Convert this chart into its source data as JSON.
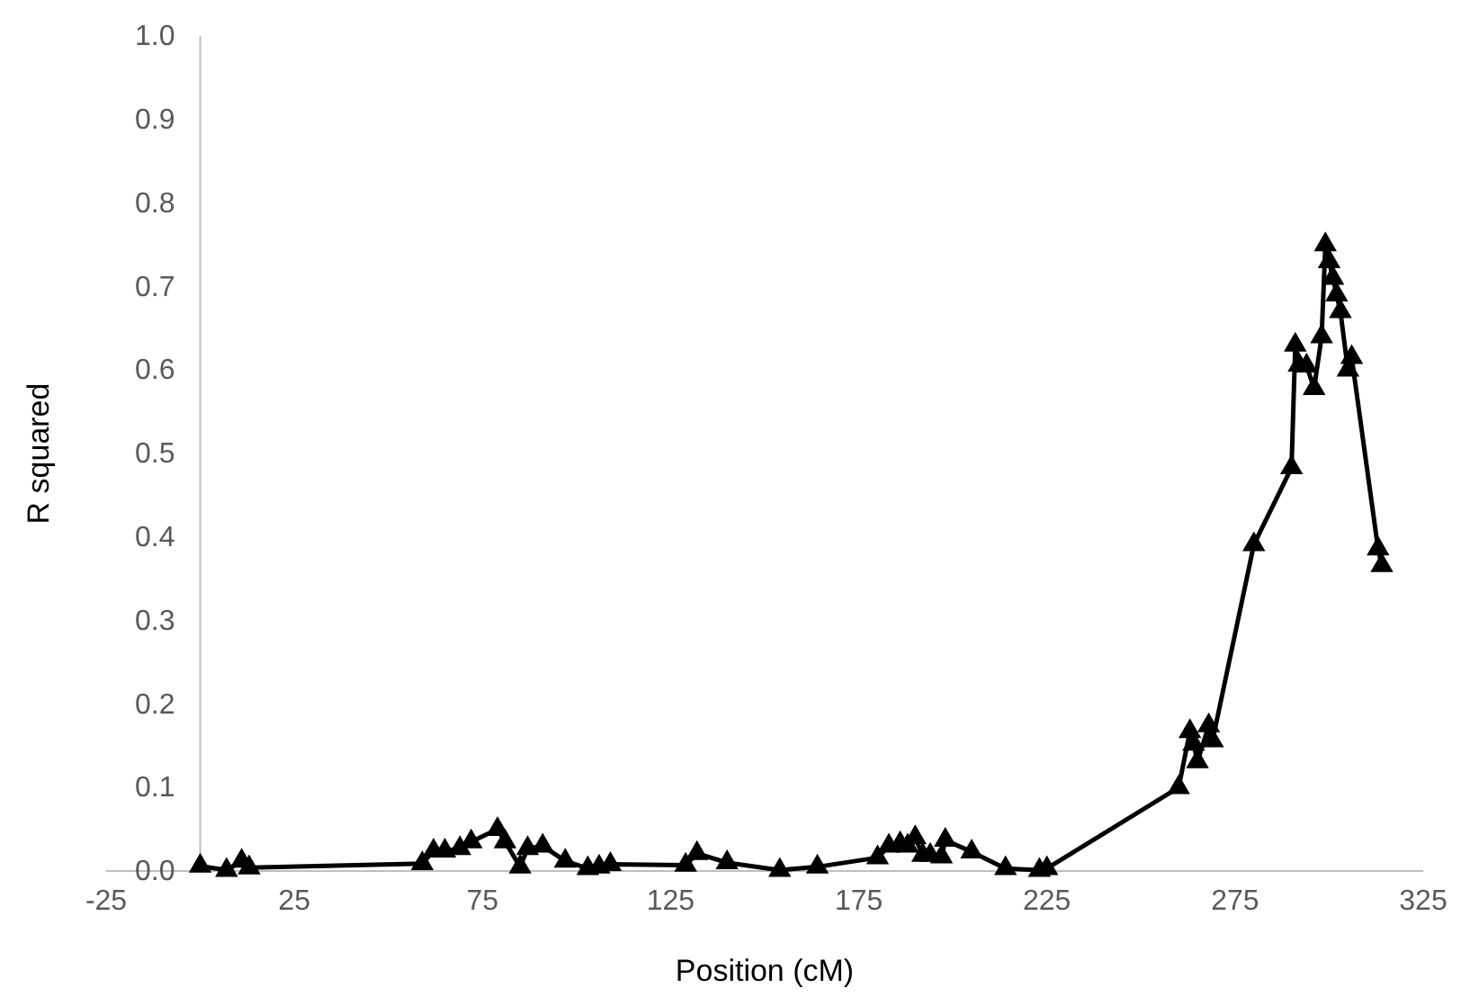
{
  "chart_data": {
    "type": "line",
    "xlabel": "Position (cM)",
    "ylabel": "R squared",
    "xlim": [
      -25,
      325
    ],
    "xticks": [
      -25,
      25,
      75,
      125,
      175,
      225,
      275,
      325
    ],
    "ylim": [
      0,
      1
    ],
    "yticks": [
      {
        "value": 0,
        "label": "0.0"
      },
      {
        "value": 0.1,
        "label": "0.1"
      },
      {
        "value": 0.2,
        "label": "0.2"
      },
      {
        "value": 0.3,
        "label": "0.3"
      },
      {
        "value": 0.4,
        "label": "0.4"
      },
      {
        "value": 0.5,
        "label": "0.5"
      },
      {
        "value": 0.6,
        "label": "0.6"
      },
      {
        "value": 0.7,
        "label": "0.7"
      },
      {
        "value": 0.8,
        "label": "0.8"
      },
      {
        "value": 0.9,
        "label": "0.9"
      },
      {
        "value": 1,
        "label": "1.0"
      }
    ],
    "grid": false,
    "marker": "triangle",
    "line_style": "solid",
    "series": [
      {
        "color": "#000000",
        "x": [
          0,
          7,
          11,
          13,
          59,
          62,
          65,
          69,
          72,
          79,
          81,
          85,
          87,
          91,
          97,
          103,
          106,
          109,
          129,
          132,
          140,
          154,
          164,
          180,
          183,
          186,
          188,
          190,
          192,
          194,
          197,
          198,
          205,
          214,
          223,
          225,
          260,
          263,
          264,
          265,
          268,
          269,
          280,
          290,
          291,
          292,
          294,
          296,
          298,
          299,
          300,
          301,
          302,
          303,
          305,
          306,
          313,
          314
        ],
        "values": [
          0.006,
          0.001,
          0.012,
          0.004,
          0.009,
          0.024,
          0.024,
          0.027,
          0.035,
          0.05,
          0.035,
          0.005,
          0.027,
          0.03,
          0.012,
          0.003,
          0.005,
          0.008,
          0.007,
          0.021,
          0.01,
          0.001,
          0.005,
          0.016,
          0.03,
          0.033,
          0.03,
          0.04,
          0.019,
          0.019,
          0.017,
          0.037,
          0.023,
          0.003,
          0.001,
          0.003,
          0.1,
          0.167,
          0.152,
          0.131,
          0.174,
          0.156,
          0.391,
          0.483,
          0.63,
          0.606,
          0.605,
          0.578,
          0.64,
          0.75,
          0.73,
          0.71,
          0.69,
          0.67,
          0.6,
          0.615,
          0.386,
          0.366
        ]
      }
    ]
  }
}
